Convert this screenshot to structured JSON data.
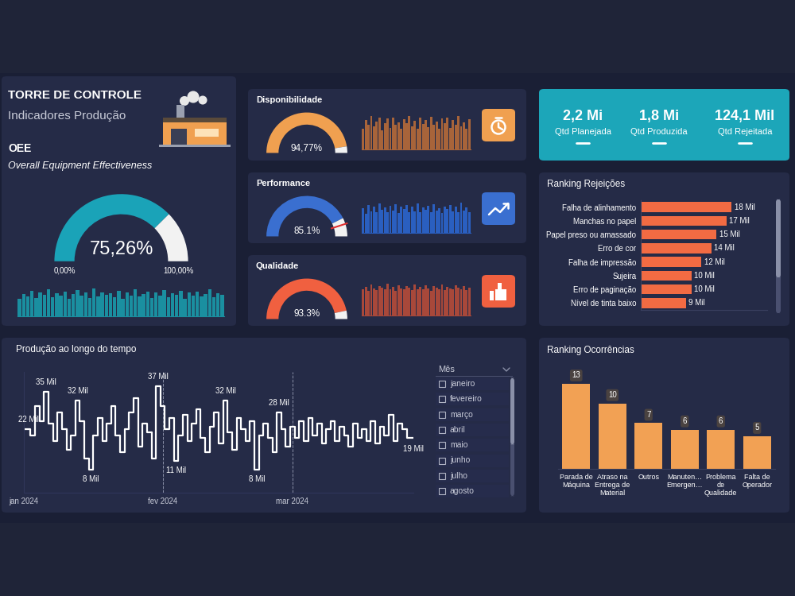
{
  "header": {
    "title": "TORRE DE CONTROLE",
    "subtitle": "Indicadores Produção"
  },
  "kpis": [
    {
      "value": 2200000,
      "label": "2,2 Mi",
      "name": "Qtd Planejada"
    },
    {
      "value": 1800000,
      "label": "1,8 Mi",
      "name": "Qtd Produzida"
    },
    {
      "value": 124100,
      "label": "124,1 Mil",
      "name": "Qtd Rejeitada"
    }
  ],
  "slicer": {
    "title": "Mês",
    "items": [
      "janeiro",
      "fevereiro",
      "março",
      "abril",
      "maio",
      "junho",
      "julho",
      "agosto"
    ]
  },
  "chart_data": [
    {
      "type": "gauge",
      "title": "OEE",
      "subtitle": "Overall Equipment Effectiveness",
      "value": 75.26,
      "value_label": "75,26%",
      "range": [
        0,
        100
      ],
      "ticks": [
        {
          "value": 0,
          "label": "0,00%"
        },
        {
          "value": 100,
          "label": "100,00%"
        }
      ],
      "color": "#1aa3b8",
      "trend": {
        "type": "bar",
        "color": "#1a8fa0",
        "ylim": [
          0,
          100
        ],
        "tick_labels": false,
        "values": [
          55,
          70,
          62,
          80,
          58,
          75,
          68,
          85,
          60,
          72,
          66,
          78,
          54,
          70,
          82,
          64,
          74,
          58,
          88,
          62,
          76,
          68,
          72,
          60,
          80,
          56,
          74,
          66,
          84,
          62,
          70,
          78,
          58,
          76,
          64,
          82,
          60,
          72,
          68,
          80,
          56,
          74,
          66,
          78,
          62,
          70,
          84,
          60,
          72,
          68
        ]
      }
    },
    {
      "type": "gauge",
      "title": "Disponibilidade",
      "value": 94.77,
      "value_label": "94,77%",
      "range": [
        0,
        100
      ],
      "color": "#f0a050",
      "trend": {
        "type": "bar",
        "color": "#a8643a",
        "ylim": [
          0,
          100
        ],
        "tick_labels": false,
        "values": [
          60,
          85,
          70,
          95,
          65,
          80,
          90,
          55,
          75,
          88,
          62,
          92,
          70,
          78,
          58,
          86,
          74,
          96,
          66,
          82,
          60,
          90,
          72,
          84,
          64,
          94,
          70,
          80,
          58,
          88,
          76,
          92,
          62,
          84,
          70,
          96,
          66,
          78,
          60,
          86
        ]
      }
    },
    {
      "type": "gauge",
      "title": "Performance",
      "value": 85.1,
      "value_label": "85.1%",
      "range": [
        0,
        100
      ],
      "target": 90,
      "color": "#3a6fd0",
      "trend": {
        "type": "bar",
        "color": "#2a5fc0",
        "ylim": [
          0,
          100
        ],
        "tick_labels": false,
        "values": [
          70,
          55,
          80,
          62,
          75,
          58,
          85,
          66,
          72,
          60,
          78,
          64,
          82,
          56,
          74,
          68,
          80,
          60,
          76,
          62,
          84,
          58,
          72,
          66,
          78,
          60,
          82,
          64,
          70,
          56,
          76,
          68,
          80,
          62,
          74,
          58,
          86,
          64,
          72,
          60
        ]
      }
    },
    {
      "type": "gauge",
      "title": "Qualidade",
      "value": 93.3,
      "value_label": "93.3%",
      "range": [
        0,
        100
      ],
      "color": "#f06040",
      "trend": {
        "type": "bar",
        "color": "#a8483a",
        "ylim": [
          0,
          100
        ],
        "tick_labels": false,
        "values": [
          75,
          82,
          70,
          88,
          78,
          72,
          85,
          80,
          74,
          90,
          76,
          82,
          70,
          86,
          78,
          74,
          84,
          80,
          72,
          88,
          76,
          82,
          74,
          86,
          78,
          70,
          84,
          80,
          76,
          88,
          72,
          82,
          78,
          74,
          86,
          80,
          76,
          84,
          72,
          80
        ]
      }
    },
    {
      "type": "bar",
      "orientation": "horizontal",
      "title": "Ranking Rejeições",
      "categories": [
        "Falha de alinhamento",
        "Manchas no papel",
        "Papel preso ou amassado",
        "Erro de cor",
        "Falha de impressão",
        "Sujeira",
        "Erro de paginação",
        "Nível de tinta baixo"
      ],
      "values": [
        18000,
        17000,
        15000,
        14000,
        12000,
        10000,
        10000,
        9000
      ],
      "value_labels": [
        "18 Mil",
        "17 Mil",
        "15 Mil",
        "14 Mil",
        "12 Mil",
        "10 Mil",
        "10 Mil",
        "9 Mil"
      ],
      "data_labels": true,
      "xlim": [
        0,
        25000
      ],
      "tick_labels": "y",
      "color": "#f26b43"
    },
    {
      "type": "line",
      "title": "Produção ao longo do tempo",
      "line_style": "steps",
      "color": "#ffffff",
      "x": [
        1,
        2,
        3,
        4,
        5,
        6,
        7,
        8,
        9,
        10,
        11,
        12,
        13,
        14,
        15,
        16,
        17,
        18,
        19,
        20,
        21,
        22,
        23,
        24,
        25,
        26,
        27,
        28,
        29,
        30,
        31,
        32,
        33,
        34,
        35,
        36,
        37,
        38,
        39,
        40,
        41,
        42,
        43,
        44,
        45,
        46,
        47,
        48,
        49,
        50,
        51,
        52,
        53,
        54,
        55,
        56,
        57,
        58,
        59,
        60,
        61,
        62,
        63,
        64,
        65,
        66,
        67,
        68,
        69,
        70,
        71,
        72,
        73,
        74,
        75,
        76,
        77,
        78,
        79,
        80,
        81,
        82,
        83,
        84,
        85,
        86,
        87,
        88
      ],
      "values": [
        22000,
        22000,
        20000,
        30000,
        25000,
        35000,
        24000,
        18000,
        28000,
        22000,
        15000,
        20000,
        32000,
        25000,
        12000,
        8000,
        20000,
        26000,
        18000,
        24000,
        30000,
        20000,
        14000,
        22000,
        28000,
        33000,
        16000,
        24000,
        21000,
        12000,
        37000,
        30000,
        22000,
        26000,
        11000,
        20000,
        27000,
        18000,
        24000,
        29000,
        19000,
        14000,
        23000,
        28000,
        17000,
        32000,
        21000,
        15000,
        26000,
        22000,
        18000,
        25000,
        8000,
        20000,
        24000,
        19000,
        14000,
        28000,
        22000,
        16000,
        23000,
        19000,
        25000,
        18000,
        26000,
        20000,
        24000,
        17000,
        22000,
        25000,
        18000,
        23000,
        20000,
        16000,
        24000,
        19000,
        22000,
        18000,
        25000,
        17000,
        23000,
        20000,
        27000,
        18000,
        24000,
        22000,
        19000,
        19000
      ],
      "value_labels": [
        null,
        "22 Mil",
        null,
        null,
        null,
        "35 Mil",
        null,
        null,
        null,
        null,
        null,
        null,
        "32 Mil",
        null,
        null,
        "8 Mil",
        null,
        null,
        null,
        null,
        null,
        null,
        null,
        null,
        null,
        null,
        null,
        null,
        null,
        null,
        "37 Mil",
        null,
        null,
        null,
        "11 Mil",
        null,
        null,
        null,
        null,
        null,
        null,
        null,
        null,
        null,
        null,
        "32 Mil",
        null,
        null,
        null,
        null,
        null,
        null,
        "8 Mil",
        null,
        null,
        null,
        null,
        "28 Mil",
        null,
        null,
        null,
        null,
        null,
        null,
        null,
        null,
        null,
        null,
        null,
        null,
        null,
        null,
        null,
        null,
        null,
        null,
        null,
        null,
        null,
        null,
        null,
        null,
        null,
        null,
        null,
        null,
        null,
        "19 Mil"
      ],
      "data_labels": true,
      "xlim": [
        1,
        88
      ],
      "ylim": [
        0,
        42000
      ],
      "xticks": [
        {
          "value": 1,
          "label": "jan 2024"
        },
        {
          "value": 32,
          "label": "fev 2024"
        },
        {
          "value": 61,
          "label": "mar 2024"
        }
      ],
      "grid": true,
      "tick_labels": "x"
    },
    {
      "type": "bar",
      "title": "Ranking Ocorrências",
      "categories": [
        "Parada de Máquina",
        "Atraso na Entrega de Material",
        "Outros",
        "Manuten… Emergen…",
        "Problema de Qualidade",
        "Falta de Operador"
      ],
      "values": [
        13,
        10,
        7,
        6,
        6,
        5
      ],
      "data_labels": true,
      "ylim": [
        0,
        16
      ],
      "tick_labels": "x",
      "color": "#f2a154"
    }
  ]
}
